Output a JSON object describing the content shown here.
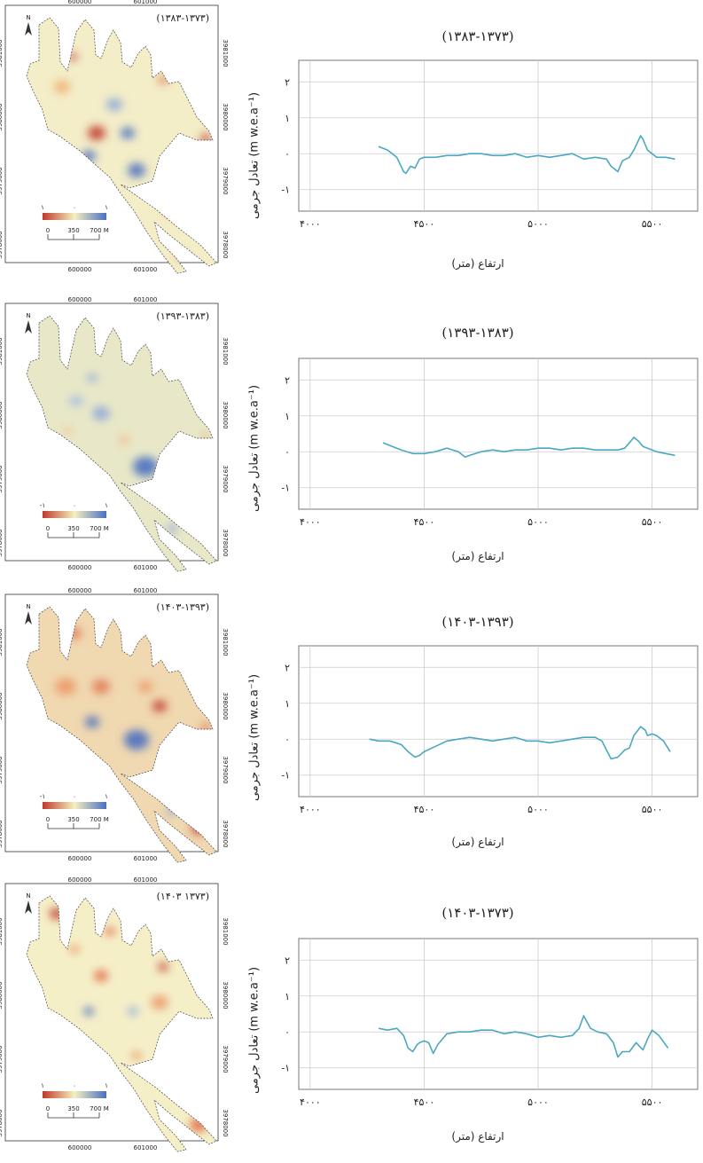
{
  "map_axis": {
    "x_ticks": [
      "600000",
      "601000"
    ],
    "y_ticks": [
      "3981000",
      "3980000",
      "3979000",
      "3978000"
    ],
    "north": "N",
    "scale_labels": [
      "0",
      "350",
      "700 M"
    ]
  },
  "colors": {
    "line": "#4aa8c0",
    "grid": "#cccccc",
    "map_red": "#c0392b",
    "map_yellow": "#f5f0c0",
    "map_blue": "#4a6fc0"
  },
  "chart_data": [
    {
      "type": "line",
      "title": "(۱۳۸۳-۱۳۷۳)",
      "ylabel": "تعادل جرمی (m w.e.a⁻¹)",
      "xlabel": "ارتفاع (متر)",
      "xlim": [
        3950,
        5700
      ],
      "ylim": [
        -1.6,
        2.6
      ],
      "x_ticks": [
        4000,
        4500,
        5000,
        5500
      ],
      "x_tick_labels": [
        "۴۰۰۰",
        "۴۵۰۰",
        "۵۰۰۰",
        "۵۵۰۰"
      ],
      "y_ticks": [
        2,
        1,
        0,
        -1
      ],
      "y_tick_labels": [
        "۲",
        "۱",
        "۰",
        "-۱"
      ],
      "map_title": "(۱۳۸۳-۱۳۷۳)",
      "legend_labels": [
        "۱",
        "۰",
        "۱"
      ],
      "x": [
        4300,
        4340,
        4380,
        4410,
        4420,
        4440,
        4460,
        4480,
        4500,
        4550,
        4600,
        4650,
        4700,
        4750,
        4800,
        4850,
        4900,
        4950,
        5000,
        5050,
        5100,
        5150,
        5200,
        5250,
        5300,
        5320,
        5350,
        5370,
        5400,
        5420,
        5450,
        5460,
        5480,
        5500,
        5520,
        5560,
        5600
      ],
      "values": [
        0.2,
        0.1,
        -0.1,
        -0.5,
        -0.55,
        -0.35,
        -0.4,
        -0.15,
        -0.1,
        -0.1,
        -0.05,
        -0.05,
        0.0,
        0.0,
        -0.05,
        -0.05,
        0.0,
        -0.1,
        -0.05,
        -0.1,
        -0.05,
        0.0,
        -0.15,
        -0.1,
        -0.15,
        -0.35,
        -0.5,
        -0.2,
        -0.1,
        0.1,
        0.5,
        0.4,
        0.1,
        0.0,
        -0.1,
        -0.1,
        -0.15
      ]
    },
    {
      "type": "line",
      "title": "(۱۳۹۳-۱۳۸۳)",
      "ylabel": "تعادل جرمی (m w.e.a⁻¹)",
      "xlabel": "ارتفاع (متر)",
      "xlim": [
        3950,
        5700
      ],
      "ylim": [
        -1.6,
        2.6
      ],
      "x_ticks": [
        4000,
        4500,
        5000,
        5500
      ],
      "x_tick_labels": [
        "۴۰۰۰",
        "۴۵۰۰",
        "۵۰۰۰",
        "۵۵۰۰"
      ],
      "y_ticks": [
        2,
        1,
        0,
        -1
      ],
      "y_tick_labels": [
        "۲",
        "۱",
        "۰",
        "-۱"
      ],
      "map_title": "(۱۳۹۳-۱۳۸۳)",
      "legend_labels": [
        "-۱",
        "۰",
        "۱"
      ],
      "x": [
        4320,
        4360,
        4400,
        4450,
        4500,
        4550,
        4600,
        4650,
        4680,
        4700,
        4750,
        4800,
        4850,
        4900,
        4950,
        5000,
        5050,
        5100,
        5150,
        5200,
        5250,
        5300,
        5350,
        5380,
        5400,
        5420,
        5440,
        5460,
        5480,
        5500,
        5520,
        5560,
        5600
      ],
      "values": [
        0.25,
        0.15,
        0.05,
        -0.05,
        -0.05,
        0.0,
        0.1,
        0.0,
        -0.15,
        -0.1,
        0.0,
        0.05,
        0.0,
        0.05,
        0.05,
        0.1,
        0.1,
        0.05,
        0.1,
        0.1,
        0.05,
        0.05,
        0.05,
        0.1,
        0.25,
        0.4,
        0.3,
        0.15,
        0.1,
        0.05,
        0.0,
        -0.05,
        -0.1
      ]
    },
    {
      "type": "line",
      "title": "(۱۴۰۳-۱۳۹۳)",
      "ylabel": "تعادل جرمی (m w.e.a⁻¹)",
      "xlabel": "ارتفاع (متر)",
      "xlim": [
        3950,
        5700
      ],
      "ylim": [
        -1.6,
        2.6
      ],
      "x_ticks": [
        4000,
        4500,
        5000,
        5500
      ],
      "x_tick_labels": [
        "۴۰۰۰",
        "۴۵۰۰",
        "۵۰۰۰",
        "۵۵۰۰"
      ],
      "y_ticks": [
        2,
        1,
        0,
        -1
      ],
      "y_tick_labels": [
        "۲",
        "۱",
        "۰",
        "-۱"
      ],
      "map_title": "(۱۴۰۳-۱۳۹۳)",
      "legend_labels": [
        "-۱",
        "۰",
        "۱"
      ],
      "x": [
        4260,
        4300,
        4350,
        4400,
        4430,
        4460,
        4480,
        4500,
        4550,
        4600,
        4650,
        4700,
        4750,
        4800,
        4850,
        4900,
        4950,
        5000,
        5050,
        5100,
        5150,
        5200,
        5250,
        5280,
        5300,
        5320,
        5350,
        5380,
        5400,
        5420,
        5450,
        5470,
        5480,
        5500,
        5520,
        5550,
        5580
      ],
      "values": [
        0.0,
        -0.05,
        -0.05,
        -0.15,
        -0.35,
        -0.5,
        -0.45,
        -0.35,
        -0.2,
        -0.05,
        0.0,
        0.05,
        0.0,
        -0.05,
        0.0,
        0.05,
        -0.05,
        -0.05,
        -0.1,
        -0.05,
        0.0,
        0.05,
        0.05,
        -0.05,
        -0.3,
        -0.55,
        -0.5,
        -0.3,
        -0.25,
        0.1,
        0.35,
        0.25,
        0.1,
        0.15,
        0.1,
        -0.05,
        -0.35
      ]
    },
    {
      "type": "line",
      "title": "(۱۴۰۳-۱۳۷۳)",
      "ylabel": "تعادل جرمی (m w.e.a⁻¹)",
      "xlabel": "ارتفاع (متر)",
      "xlim": [
        3950,
        5700
      ],
      "ylim": [
        -1.6,
        2.6
      ],
      "x_ticks": [
        4000,
        4500,
        5000,
        5500
      ],
      "x_tick_labels": [
        "۴۰۰۰",
        "۴۵۰۰",
        "۵۰۰۰",
        "۵۵۰۰"
      ],
      "y_ticks": [
        2,
        1,
        0,
        -1
      ],
      "y_tick_labels": [
        "۲",
        "۱",
        "۰",
        "-۱"
      ],
      "map_title": "(۱۴۰۳ ۱۳۷۳)",
      "legend_labels": [
        "۱",
        "۰",
        "۱"
      ],
      "x": [
        4300,
        4340,
        4380,
        4410,
        4430,
        4450,
        4470,
        4480,
        4500,
        4520,
        4540,
        4560,
        4600,
        4650,
        4700,
        4750,
        4800,
        4850,
        4900,
        4950,
        5000,
        5050,
        5100,
        5150,
        5180,
        5200,
        5230,
        5260,
        5300,
        5330,
        5350,
        5370,
        5400,
        5430,
        5460,
        5480,
        5500,
        5530,
        5570
      ],
      "values": [
        0.1,
        0.05,
        0.1,
        -0.1,
        -0.45,
        -0.55,
        -0.35,
        -0.3,
        -0.25,
        -0.3,
        -0.6,
        -0.35,
        -0.05,
        0.0,
        0.0,
        0.05,
        0.05,
        -0.05,
        0.0,
        -0.05,
        -0.15,
        -0.1,
        -0.15,
        -0.1,
        0.1,
        0.45,
        0.1,
        0.0,
        -0.05,
        -0.3,
        -0.7,
        -0.55,
        -0.55,
        -0.3,
        -0.5,
        -0.2,
        0.05,
        -0.1,
        -0.45
      ]
    }
  ]
}
